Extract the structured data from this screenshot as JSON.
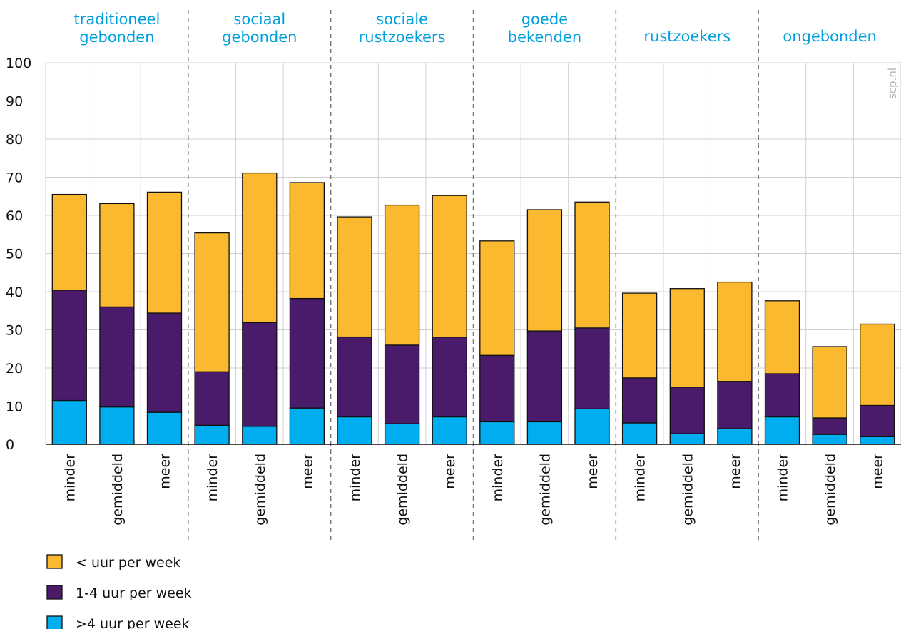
{
  "chart_data": {
    "type": "bar",
    "stacked": true,
    "groups": [
      {
        "label": [
          "traditioneel",
          "gebonden"
        ]
      },
      {
        "label": [
          "sociaal",
          "gebonden"
        ]
      },
      {
        "label": [
          "sociale",
          "rustzoekers"
        ]
      },
      {
        "label": [
          "goede",
          "bekenden"
        ]
      },
      {
        "label": [
          "rustzoekers"
        ]
      },
      {
        "label": [
          "ongebonden"
        ]
      }
    ],
    "subcategories": [
      "minder",
      "gemiddeld",
      "meer"
    ],
    "series": [
      {
        "name": ">4 uur per week",
        "color": "#00AEEF",
        "values": [
          11.5,
          9.8,
          8.4,
          5.0,
          4.7,
          9.5,
          7.2,
          5.4,
          7.2,
          5.9,
          5.9,
          9.3,
          5.6,
          2.8,
          4.1,
          7.2,
          2.6,
          2.0
        ]
      },
      {
        "name": "1-4 uur per week",
        "color": "#4A1A6B",
        "values": [
          28.9,
          26.2,
          26.0,
          14.0,
          27.2,
          28.7,
          20.9,
          20.6,
          20.9,
          17.4,
          23.8,
          21.2,
          11.8,
          12.2,
          12.4,
          11.3,
          4.3,
          8.2
        ]
      },
      {
        "name": "< uur per week",
        "color": "#FBB92F",
        "values": [
          25.1,
          27.1,
          31.7,
          36.4,
          39.2,
          30.4,
          31.5,
          36.7,
          37.1,
          30.0,
          31.8,
          33.0,
          22.2,
          25.8,
          26.0,
          19.1,
          18.7,
          21.3
        ]
      }
    ],
    "yticks": [
      "0",
      "10",
      "20",
      "30",
      "40",
      "50",
      "60",
      "70",
      "80",
      "90",
      "100"
    ],
    "ylim": [
      0,
      100
    ],
    "grid": true,
    "legend_position": "bottom-left",
    "group_label_color": "#00A0DF",
    "watermark": "scp.nl"
  }
}
